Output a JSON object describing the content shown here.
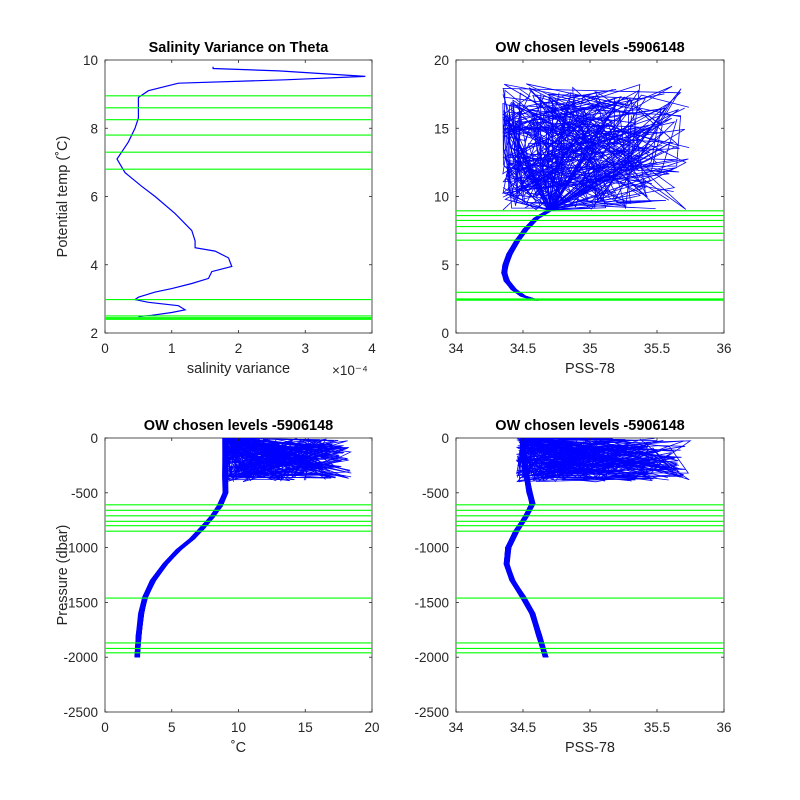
{
  "figure": {
    "background": "#ffffff",
    "level_line_color": "#00ff00",
    "profile_line_color": "#0000ff",
    "axis_color": "#262626"
  },
  "chart_data": [
    {
      "type": "line",
      "title": "Salinity Variance on Theta",
      "xlabel": "salinity variance",
      "x_exponent_label": "×10⁻⁴",
      "ylabel": "Potential temp (˚C)",
      "xlim": [
        0,
        4
      ],
      "ylim": [
        2,
        10
      ],
      "xticks": [
        0,
        1,
        2,
        3,
        4
      ],
      "xtick_labels": [
        "0",
        "1",
        "2",
        "3",
        "4"
      ],
      "yticks": [
        2,
        4,
        6,
        8,
        10
      ],
      "ytick_labels": [
        "2",
        "4",
        "6",
        "8",
        "10"
      ],
      "series": [
        {
          "color": "#0000ff",
          "points": [
            [
              1.62,
              9.8
            ],
            [
              1.62,
              9.75
            ],
            [
              2.6,
              9.68
            ],
            [
              3.9,
              9.52
            ],
            [
              2.7,
              9.42
            ],
            [
              1.1,
              9.32
            ],
            [
              0.65,
              9.1
            ],
            [
              0.5,
              8.9
            ],
            [
              0.5,
              8.6
            ],
            [
              0.5,
              8.3
            ],
            [
              0.45,
              8.0
            ],
            [
              0.35,
              7.6
            ],
            [
              0.25,
              7.3
            ],
            [
              0.18,
              7.1
            ],
            [
              0.3,
              6.7
            ],
            [
              0.55,
              6.3
            ],
            [
              0.75,
              6.0
            ],
            [
              1.05,
              5.5
            ],
            [
              1.3,
              5.0
            ],
            [
              1.35,
              4.7
            ],
            [
              1.35,
              4.5
            ],
            [
              1.65,
              4.4
            ],
            [
              1.85,
              4.2
            ],
            [
              1.9,
              3.95
            ],
            [
              1.6,
              3.8
            ],
            [
              1.55,
              3.6
            ],
            [
              1.3,
              3.45
            ],
            [
              1.0,
              3.3
            ],
            [
              0.75,
              3.2
            ],
            [
              0.5,
              3.05
            ],
            [
              0.45,
              2.98
            ],
            [
              0.65,
              2.9
            ],
            [
              1.1,
              2.8
            ],
            [
              1.2,
              2.68
            ],
            [
              1.0,
              2.6
            ],
            [
              0.7,
              2.52
            ],
            [
              0.5,
              2.48
            ]
          ]
        }
      ],
      "level_lines": [
        8.95,
        8.6,
        8.25,
        7.8,
        7.3,
        6.8,
        2.98,
        2.5,
        2.45,
        2.42,
        2.4
      ]
    },
    {
      "type": "line",
      "title": "OW chosen levels -5906148",
      "xlabel": "PSS-78",
      "ylabel": "",
      "xlim": [
        34,
        36
      ],
      "ylim": [
        0,
        20
      ],
      "xticks": [
        34,
        34.5,
        35,
        35.5,
        36
      ],
      "xtick_labels": [
        "34",
        "34.5",
        "35",
        "35.5",
        "36"
      ],
      "yticks": [
        0,
        5,
        10,
        15,
        20
      ],
      "ytick_labels": [
        "0",
        "5",
        "10",
        "15",
        "20"
      ],
      "series": [
        {
          "name": "",
          "color": "#0000ff",
          "profile_count": 70,
          "core_path": [
            [
              34.6,
              2.4
            ],
            [
              34.5,
              2.7
            ],
            [
              34.43,
              3.2
            ],
            [
              34.38,
              3.8
            ],
            [
              34.36,
              4.4
            ],
            [
              34.37,
              5.0
            ],
            [
              34.4,
              5.8
            ],
            [
              34.46,
              6.8
            ],
            [
              34.52,
              7.6
            ],
            [
              34.6,
              8.4
            ],
            [
              34.7,
              9.0
            ]
          ],
          "surface_range": {
            "x": [
              34.35,
              35.75
            ],
            "y": [
              9.0,
              18.3
            ]
          }
        }
      ],
      "level_lines": [
        8.95,
        8.6,
        8.25,
        7.8,
        7.3,
        6.8,
        2.98,
        2.5,
        2.45,
        2.42,
        2.4
      ]
    },
    {
      "type": "line",
      "title": "OW chosen levels -5906148",
      "xlabel": "˚C",
      "ylabel": "Pressure (dbar)",
      "xlim": [
        0,
        20
      ],
      "ylim": [
        -2500,
        0
      ],
      "xticks": [
        0,
        5,
        10,
        15,
        20
      ],
      "xtick_labels": [
        "0",
        "5",
        "10",
        "15",
        "20"
      ],
      "yticks": [
        -2500,
        -2000,
        -1500,
        -1000,
        -500,
        0
      ],
      "ytick_labels": [
        "-2500",
        "-2000",
        "-1500",
        "-1000",
        "-500",
        "0"
      ],
      "series": [
        {
          "name": "",
          "color": "#0000ff",
          "profile_count": 70,
          "core_path": [
            [
              2.4,
              -2000
            ],
            [
              2.5,
              -1800
            ],
            [
              2.7,
              -1600
            ],
            [
              3.0,
              -1450
            ],
            [
              3.6,
              -1300
            ],
            [
              4.5,
              -1150
            ],
            [
              5.5,
              -1020
            ],
            [
              6.5,
              -920
            ],
            [
              7.3,
              -820
            ],
            [
              8.0,
              -720
            ],
            [
              8.6,
              -620
            ],
            [
              9.0,
              -500
            ],
            [
              9.0,
              -350
            ],
            [
              9.0,
              -200
            ],
            [
              9.0,
              0
            ]
          ],
          "surface_range": {
            "x": [
              9.0,
              18.5
            ],
            "y": [
              -400,
              0
            ]
          }
        }
      ],
      "level_lines": [
        -610,
        -660,
        -710,
        -760,
        -800,
        -850,
        -1460,
        -1870,
        -1920,
        -1960
      ]
    },
    {
      "type": "line",
      "title": "OW chosen levels -5906148",
      "xlabel": "PSS-78",
      "ylabel": "",
      "xlim": [
        34,
        36
      ],
      "ylim": [
        -2500,
        0
      ],
      "xticks": [
        34,
        34.5,
        35,
        35.5,
        36
      ],
      "xtick_labels": [
        "34",
        "34.5",
        "35",
        "35.5",
        "36"
      ],
      "yticks": [
        -2500,
        -2000,
        -1500,
        -1000,
        -500,
        0
      ],
      "ytick_labels": [
        "-2500",
        "-2000",
        "-1500",
        "-1000",
        "-500",
        "0"
      ],
      "series": [
        {
          "name": "",
          "color": "#0000ff",
          "profile_count": 70,
          "core_path": [
            [
              34.67,
              -2000
            ],
            [
              34.62,
              -1800
            ],
            [
              34.57,
              -1600
            ],
            [
              34.5,
              -1450
            ],
            [
              34.42,
              -1300
            ],
            [
              34.38,
              -1150
            ],
            [
              34.39,
              -1000
            ],
            [
              34.45,
              -850
            ],
            [
              34.52,
              -720
            ],
            [
              34.57,
              -600
            ],
            [
              34.55,
              -500
            ],
            [
              34.52,
              -300
            ],
            [
              34.5,
              -150
            ],
            [
              34.5,
              0
            ]
          ],
          "surface_range": {
            "x": [
              34.45,
              35.75
            ],
            "y": [
              -400,
              0
            ]
          }
        }
      ],
      "level_lines": [
        -610,
        -660,
        -710,
        -760,
        -800,
        -850,
        -1460,
        -1870,
        -1920,
        -1960
      ]
    }
  ]
}
